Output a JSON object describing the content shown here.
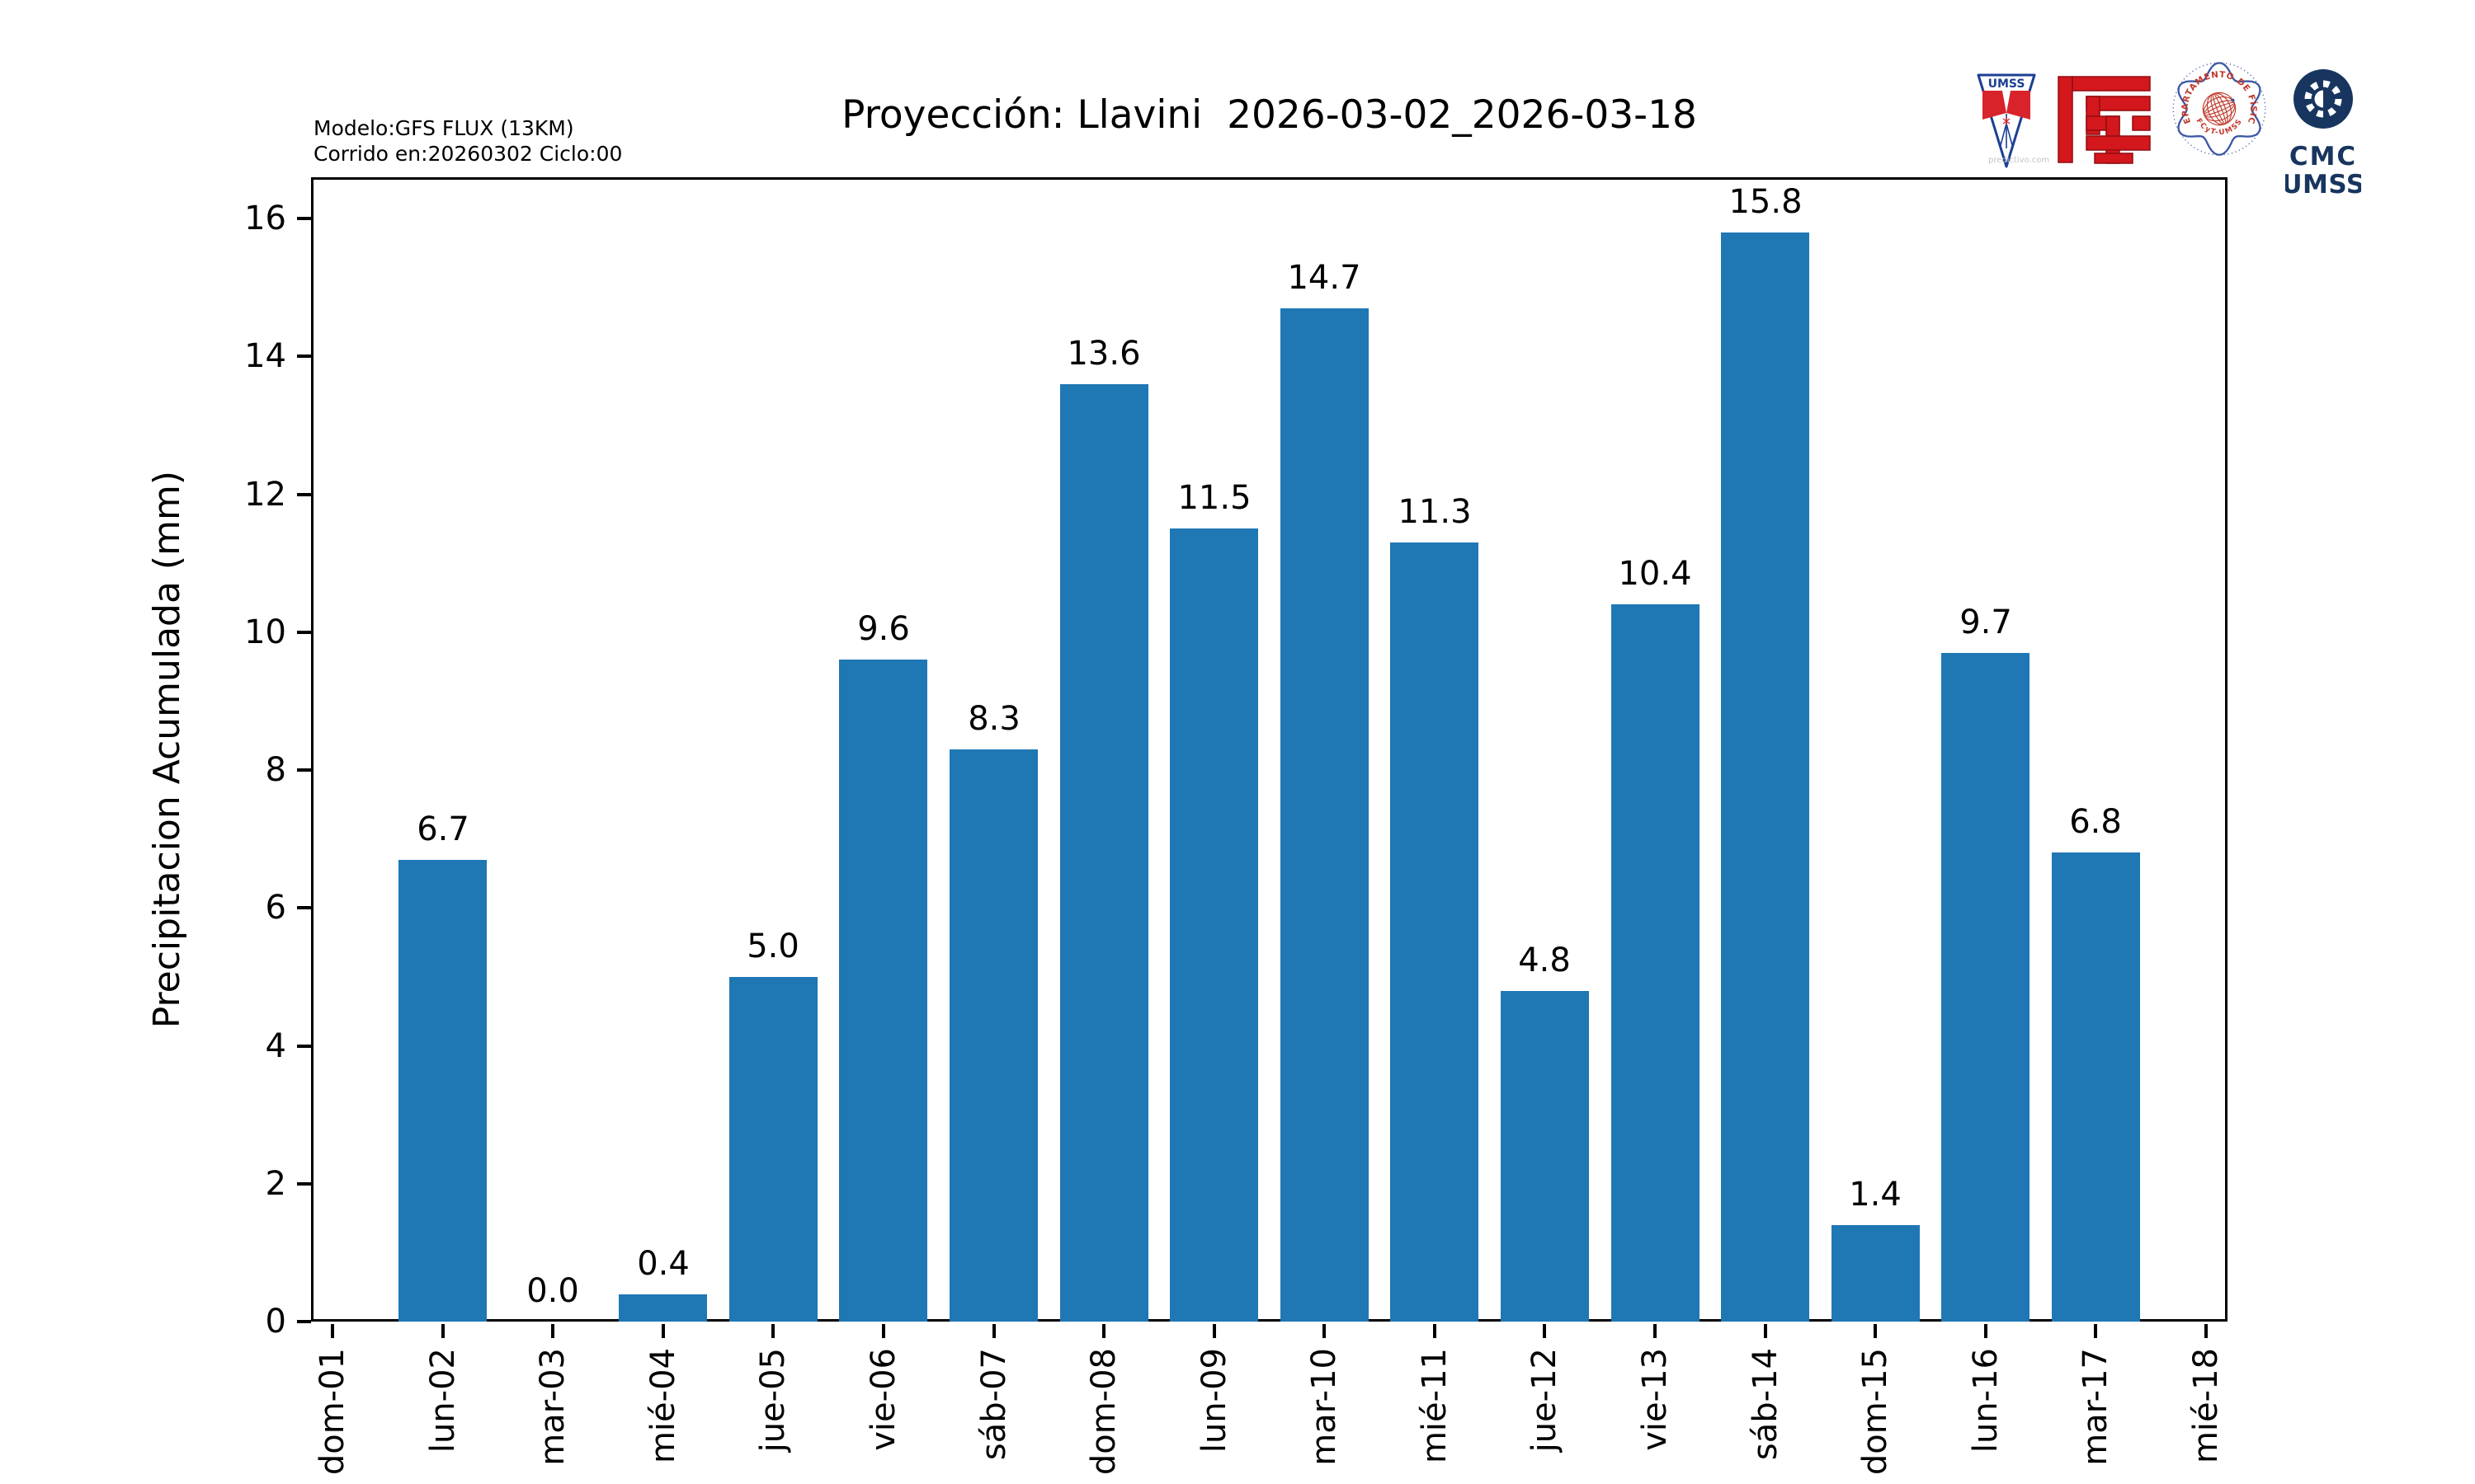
{
  "header": {
    "model_line1": "Modelo:GFS FLUX (13KM)",
    "model_line2": "Corrido en:20260302 Ciclo:00"
  },
  "logos": {
    "umss_pennant_text": "UMSS",
    "watermark": "predictivo.com",
    "seal_text_top": "DEPARTAMENTO DE FÍSICA",
    "seal_text_bottom": "FCyT-UMSS",
    "cmc_line1": "CMC",
    "cmc_line2": "UMSS",
    "navy": "#17355e",
    "logo_red": "#d4171d",
    "seal_blue": "#3a56a5",
    "seal_orange": "#c0392b",
    "pennant_blue": "#1c3f94",
    "pennant_red": "#d8232a"
  },
  "chart_data": {
    "type": "bar",
    "title": "Proyección: Llavini  2026-03-02_2026-03-18",
    "ylabel": "Precipitacion Acumulada (mm)",
    "xlabel": "",
    "categories": [
      "dom-01",
      "lun-02",
      "mar-03",
      "mié-04",
      "jue-05",
      "vie-06",
      "sáb-07",
      "dom-08",
      "lun-09",
      "mar-10",
      "mié-11",
      "jue-12",
      "vie-13",
      "sáb-14",
      "dom-15",
      "lun-16",
      "mar-17",
      "mié-18"
    ],
    "values": [
      null,
      6.7,
      0.0,
      0.4,
      5.0,
      9.6,
      8.3,
      13.6,
      11.5,
      14.7,
      11.3,
      4.8,
      10.4,
      15.8,
      1.4,
      9.7,
      6.8,
      null
    ],
    "value_label_decimals": 1,
    "yticks": [
      0,
      2,
      4,
      6,
      8,
      10,
      12,
      14,
      16
    ],
    "ylim": [
      0,
      16.6
    ],
    "bar_color": "#1f77b4",
    "grid": false,
    "legend": null
  }
}
